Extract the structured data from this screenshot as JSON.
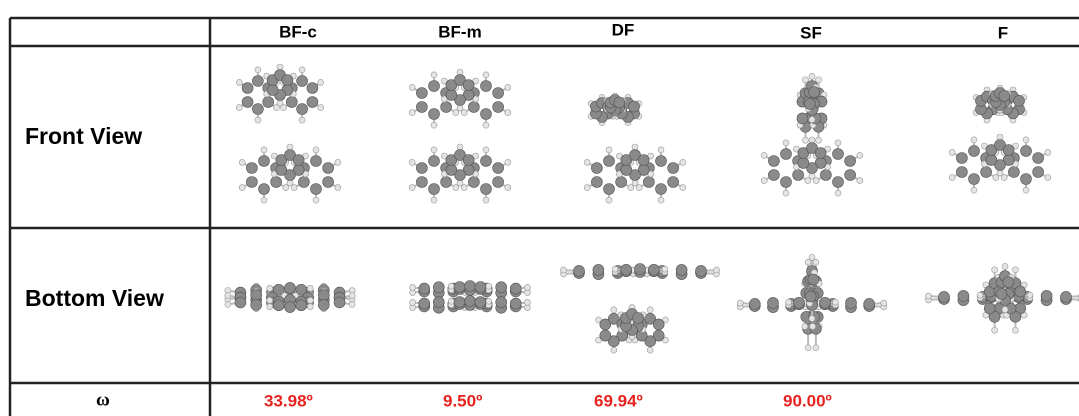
{
  "table": {
    "columns": [
      "BF-c",
      "BF-m",
      "DF",
      "SF",
      "F"
    ],
    "rows": [
      "Front View",
      "Bottom View",
      "ω"
    ],
    "omega_values": [
      "33.98º",
      "9.50º",
      "69.94º",
      "90.00º"
    ]
  }
}
